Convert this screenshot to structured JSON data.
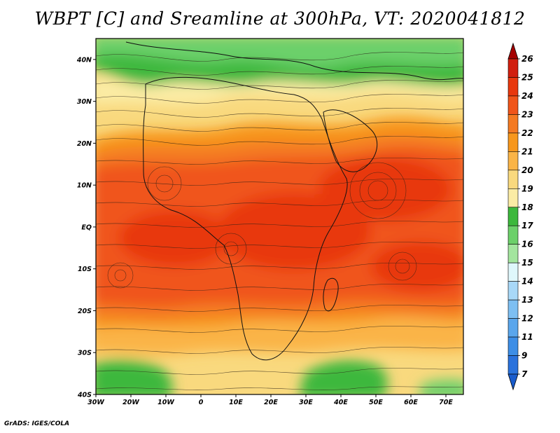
{
  "title": "WBPT [C] and Sreamline at 300hPa, VT: 2020041812",
  "credit": "GrADS: IGES/COLA",
  "axes": {
    "lon": [
      {
        "label": "30W",
        "value": -30
      },
      {
        "label": "20W",
        "value": -20
      },
      {
        "label": "10W",
        "value": -10
      },
      {
        "label": "0",
        "value": 0
      },
      {
        "label": "10E",
        "value": 10
      },
      {
        "label": "20E",
        "value": 20
      },
      {
        "label": "30E",
        "value": 30
      },
      {
        "label": "40E",
        "value": 40
      },
      {
        "label": "50E",
        "value": 50
      },
      {
        "label": "60E",
        "value": 60
      },
      {
        "label": "70E",
        "value": 70
      }
    ],
    "lat": [
      {
        "label": "40N",
        "value": 40
      },
      {
        "label": "30N",
        "value": 30
      },
      {
        "label": "20N",
        "value": 20
      },
      {
        "label": "10N",
        "value": 10
      },
      {
        "label": "EQ",
        "value": 0
      },
      {
        "label": "10S",
        "value": -10
      },
      {
        "label": "20S",
        "value": -20
      },
      {
        "label": "30S",
        "value": -30
      },
      {
        "label": "40S",
        "value": -40
      }
    ],
    "lon_range": [
      -30,
      75
    ],
    "lat_range": [
      -40,
      45
    ]
  },
  "colorbar": {
    "labels": [
      "26",
      "25",
      "24",
      "23",
      "22",
      "21",
      "20",
      "19",
      "18",
      "17",
      "16",
      "15",
      "14",
      "13",
      "12",
      "11",
      "9",
      "7"
    ],
    "colors": [
      "#a50000",
      "#d11f0f",
      "#e8380e",
      "#f0551a",
      "#f47a22",
      "#f7971c",
      "#fab447",
      "#f9d97e",
      "#fbeca5",
      "#3cb83c",
      "#6cd06a",
      "#a3e59e",
      "#dff7fb",
      "#a8d8f8",
      "#7dbff2",
      "#5aa6ec",
      "#3d8ee6",
      "#2a72dc",
      "#1a5ccc"
    ]
  },
  "colors": {
    "green_dark": "#3cb83c",
    "green_mid": "#6cd06a",
    "green_light": "#a3e59e",
    "yellow_light": "#fbeca5",
    "yellow": "#f9d97e",
    "orange_light": "#fab447",
    "orange": "#f7971c",
    "orange_dark": "#f47a22",
    "red_orange": "#f0551a",
    "red": "#e8380e"
  }
}
